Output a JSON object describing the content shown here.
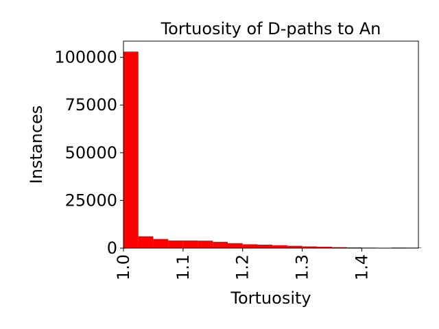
{
  "chart_data": {
    "type": "bar",
    "title": "Tortuosity of D-paths to An",
    "xlabel": "Tortuosity",
    "ylabel": "Instances",
    "xlim": [
      1.0,
      1.495
    ],
    "ylim": [
      0,
      108500
    ],
    "grid": false,
    "legend": "none",
    "bar_color": "#ff0000",
    "bin_width": 0.025,
    "bin_starts": [
      1.0,
      1.025,
      1.05,
      1.075,
      1.1,
      1.125,
      1.15,
      1.175,
      1.2,
      1.225,
      1.25,
      1.275,
      1.3,
      1.325,
      1.35,
      1.375,
      1.4,
      1.425,
      1.45,
      1.475
    ],
    "values": [
      103000,
      6200,
      4800,
      4000,
      4000,
      3900,
      3300,
      2600,
      2000,
      1800,
      1500,
      1200,
      900,
      700,
      500,
      350,
      250,
      180,
      300,
      250
    ],
    "x_ticks": [
      1.0,
      1.1,
      1.2,
      1.3,
      1.4
    ],
    "x_tick_labels": [
      "1.0",
      "1.1",
      "1.2",
      "1.3",
      "1.4"
    ],
    "y_ticks": [
      0,
      25000,
      50000,
      75000,
      100000
    ],
    "y_tick_labels": [
      "0",
      "25000",
      "50000",
      "75000",
      "100000"
    ]
  }
}
